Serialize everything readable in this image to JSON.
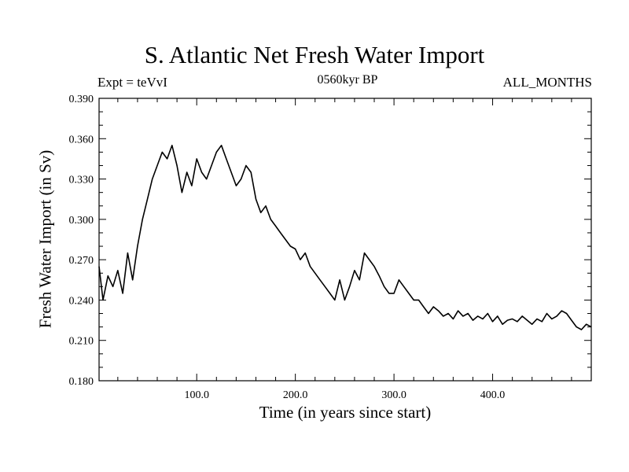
{
  "chart_data": {
    "type": "line",
    "title": "S. Atlantic Net Fresh Water Import",
    "subtitle_left": "Expt = teVvI",
    "subtitle_center": "0560kyr BP",
    "subtitle_right": "ALL_MONTHS",
    "xlabel": "Time (in years since start)",
    "ylabel": "Fresh Water Import (in Sv)",
    "xlim": [
      1,
      500
    ],
    "ylim": [
      0.18,
      0.39
    ],
    "xticks": [
      "100.0",
      "200.0",
      "300.0",
      "400.0"
    ],
    "xtick_values": [
      100,
      200,
      300,
      400
    ],
    "yticks": [
      "0.180",
      "0.210",
      "0.240",
      "0.270",
      "0.300",
      "0.330",
      "0.360",
      "0.390"
    ],
    "ytick_values": [
      0.18,
      0.21,
      0.24,
      0.27,
      0.3,
      0.33,
      0.36,
      0.39
    ],
    "series": [
      {
        "name": "Fresh Water Import",
        "color": "#000000",
        "x": [
          1,
          5,
          10,
          15,
          20,
          25,
          30,
          35,
          40,
          45,
          50,
          55,
          60,
          65,
          70,
          75,
          80,
          85,
          90,
          95,
          100,
          105,
          110,
          115,
          120,
          125,
          130,
          135,
          140,
          145,
          150,
          155,
          160,
          165,
          170,
          175,
          180,
          185,
          190,
          195,
          200,
          205,
          210,
          215,
          220,
          225,
          230,
          235,
          240,
          245,
          250,
          255,
          260,
          265,
          270,
          275,
          280,
          285,
          290,
          295,
          300,
          305,
          310,
          315,
          320,
          325,
          330,
          335,
          340,
          345,
          350,
          355,
          360,
          365,
          370,
          375,
          380,
          385,
          390,
          395,
          400,
          405,
          410,
          415,
          420,
          425,
          430,
          435,
          440,
          445,
          450,
          455,
          460,
          465,
          470,
          475,
          480,
          485,
          490,
          495,
          500
        ],
        "y": [
          0.265,
          0.24,
          0.258,
          0.25,
          0.262,
          0.245,
          0.275,
          0.255,
          0.28,
          0.3,
          0.315,
          0.33,
          0.34,
          0.35,
          0.345,
          0.355,
          0.34,
          0.32,
          0.335,
          0.325,
          0.345,
          0.335,
          0.33,
          0.34,
          0.35,
          0.355,
          0.345,
          0.335,
          0.325,
          0.33,
          0.34,
          0.335,
          0.315,
          0.305,
          0.31,
          0.3,
          0.295,
          0.29,
          0.285,
          0.28,
          0.278,
          0.27,
          0.275,
          0.265,
          0.26,
          0.255,
          0.25,
          0.245,
          0.24,
          0.255,
          0.24,
          0.25,
          0.262,
          0.255,
          0.275,
          0.27,
          0.265,
          0.258,
          0.25,
          0.245,
          0.245,
          0.255,
          0.25,
          0.245,
          0.24,
          0.24,
          0.235,
          0.23,
          0.235,
          0.232,
          0.228,
          0.23,
          0.226,
          0.232,
          0.228,
          0.23,
          0.225,
          0.228,
          0.226,
          0.23,
          0.224,
          0.228,
          0.222,
          0.225,
          0.226,
          0.224,
          0.228,
          0.225,
          0.222,
          0.226,
          0.224,
          0.23,
          0.226,
          0.228,
          0.232,
          0.23,
          0.225,
          0.22,
          0.218,
          0.222,
          0.22
        ]
      }
    ]
  }
}
